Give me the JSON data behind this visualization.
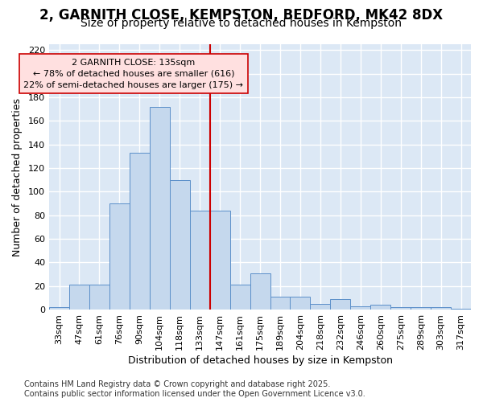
{
  "title_line1": "2, GARNITH CLOSE, KEMPSTON, BEDFORD, MK42 8DX",
  "title_line2": "Size of property relative to detached houses in Kempston",
  "xlabel": "Distribution of detached houses by size in Kempston",
  "ylabel": "Number of detached properties",
  "categories": [
    "33sqm",
    "47sqm",
    "61sqm",
    "76sqm",
    "90sqm",
    "104sqm",
    "118sqm",
    "133sqm",
    "147sqm",
    "161sqm",
    "175sqm",
    "189sqm",
    "204sqm",
    "218sqm",
    "232sqm",
    "246sqm",
    "260sqm",
    "275sqm",
    "289sqm",
    "303sqm",
    "317sqm"
  ],
  "values": [
    2,
    21,
    21,
    90,
    133,
    172,
    110,
    84,
    84,
    21,
    31,
    11,
    11,
    5,
    9,
    3,
    4,
    2,
    2,
    2,
    1
  ],
  "bar_color": "#c5d8ed",
  "bar_edge_color": "#5b8fc9",
  "vline_color": "#cc0000",
  "vline_pos": 7.5,
  "annotation_text": "2 GARNITH CLOSE: 135sqm\n← 78% of detached houses are smaller (616)\n22% of semi-detached houses are larger (175) →",
  "annotation_box_facecolor": "#ffe0e0",
  "annotation_box_edgecolor": "#cc0000",
  "ylim": [
    0,
    225
  ],
  "yticks": [
    0,
    20,
    40,
    60,
    80,
    100,
    120,
    140,
    160,
    180,
    200,
    220
  ],
  "plot_bg_color": "#dce8f5",
  "fig_bg_color": "#ffffff",
  "grid_color": "#ffffff",
  "footnote": "Contains HM Land Registry data © Crown copyright and database right 2025.\nContains public sector information licensed under the Open Government Licence v3.0.",
  "title_fontsize": 12,
  "subtitle_fontsize": 10,
  "axis_label_fontsize": 9,
  "tick_fontsize": 8,
  "annotation_fontsize": 8,
  "footnote_fontsize": 7
}
